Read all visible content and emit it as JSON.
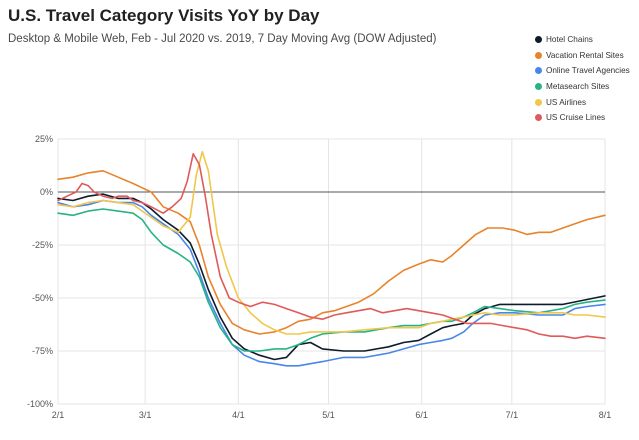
{
  "chart_data": {
    "type": "line",
    "title": "U.S. Travel Category Visits YoY by Day",
    "subtitle": "Desktop & Mobile Web, Feb - Jul 2020 vs. 2019, 7 Day Moving Avg (DOW Adjusted)",
    "x_ticks": [
      "2/1",
      "3/1",
      "4/1",
      "5/1",
      "6/1",
      "7/1",
      "8/1"
    ],
    "y_ticks": [
      "25%",
      "0%",
      "-25%",
      "-50%",
      "-75%",
      "-100%"
    ],
    "y_tick_values": [
      25,
      0,
      -25,
      -50,
      -75,
      -100
    ],
    "ylim": [
      -100,
      25
    ],
    "x_range_days": [
      0,
      182
    ],
    "grid": true,
    "legend_position": "top-right",
    "series": [
      {
        "name": "Hotel Chains",
        "color": "#0d1b2a",
        "points": [
          [
            0,
            -3
          ],
          [
            5,
            -4
          ],
          [
            10,
            -2
          ],
          [
            15,
            -1
          ],
          [
            20,
            -3
          ],
          [
            25,
            -3
          ],
          [
            28,
            -5
          ],
          [
            31,
            -8
          ],
          [
            35,
            -13
          ],
          [
            40,
            -18
          ],
          [
            44,
            -24
          ],
          [
            47,
            -34
          ],
          [
            50,
            -46
          ],
          [
            54,
            -59
          ],
          [
            58,
            -69
          ],
          [
            62,
            -74
          ],
          [
            67,
            -77
          ],
          [
            72,
            -79
          ],
          [
            76,
            -78
          ],
          [
            80,
            -72
          ],
          [
            84,
            -71
          ],
          [
            88,
            -74
          ],
          [
            95,
            -75
          ],
          [
            102,
            -75
          ],
          [
            110,
            -73
          ],
          [
            115,
            -71
          ],
          [
            120,
            -70
          ],
          [
            124,
            -67
          ],
          [
            128,
            -64
          ],
          [
            131,
            -63
          ],
          [
            135,
            -62
          ],
          [
            138,
            -58
          ],
          [
            142,
            -55
          ],
          [
            147,
            -53
          ],
          [
            152,
            -53
          ],
          [
            160,
            -53
          ],
          [
            168,
            -53
          ],
          [
            175,
            -51
          ],
          [
            182,
            -49
          ]
        ]
      },
      {
        "name": "Vacation Rental Sites",
        "color": "#e8832b",
        "points": [
          [
            0,
            6
          ],
          [
            5,
            7
          ],
          [
            10,
            9
          ],
          [
            15,
            10
          ],
          [
            20,
            7
          ],
          [
            25,
            4
          ],
          [
            28,
            2
          ],
          [
            31,
            0
          ],
          [
            35,
            -7
          ],
          [
            40,
            -10
          ],
          [
            44,
            -14
          ],
          [
            47,
            -25
          ],
          [
            50,
            -40
          ],
          [
            54,
            -53
          ],
          [
            58,
            -62
          ],
          [
            62,
            -65
          ],
          [
            67,
            -67
          ],
          [
            72,
            -66
          ],
          [
            76,
            -64
          ],
          [
            80,
            -61
          ],
          [
            84,
            -60
          ],
          [
            88,
            -57
          ],
          [
            92,
            -56
          ],
          [
            96,
            -54
          ],
          [
            100,
            -52
          ],
          [
            105,
            -48
          ],
          [
            110,
            -42
          ],
          [
            115,
            -37
          ],
          [
            120,
            -34
          ],
          [
            124,
            -32
          ],
          [
            128,
            -33
          ],
          [
            131,
            -30
          ],
          [
            135,
            -25
          ],
          [
            139,
            -20
          ],
          [
            143,
            -17
          ],
          [
            148,
            -17
          ],
          [
            152,
            -18
          ],
          [
            156,
            -20
          ],
          [
            160,
            -19
          ],
          [
            164,
            -19
          ],
          [
            168,
            -17
          ],
          [
            172,
            -15
          ],
          [
            176,
            -13
          ],
          [
            182,
            -11
          ]
        ]
      },
      {
        "name": "Online Travel Agencies",
        "color": "#4a86e8",
        "points": [
          [
            0,
            -5
          ],
          [
            5,
            -7
          ],
          [
            10,
            -6
          ],
          [
            15,
            -4
          ],
          [
            20,
            -5
          ],
          [
            25,
            -5
          ],
          [
            28,
            -7
          ],
          [
            31,
            -11
          ],
          [
            35,
            -15
          ],
          [
            40,
            -20
          ],
          [
            44,
            -27
          ],
          [
            47,
            -38
          ],
          [
            50,
            -50
          ],
          [
            54,
            -62
          ],
          [
            58,
            -72
          ],
          [
            62,
            -77
          ],
          [
            67,
            -80
          ],
          [
            72,
            -81
          ],
          [
            76,
            -82
          ],
          [
            80,
            -82
          ],
          [
            84,
            -81
          ],
          [
            88,
            -80
          ],
          [
            95,
            -78
          ],
          [
            102,
            -78
          ],
          [
            110,
            -76
          ],
          [
            115,
            -74
          ],
          [
            120,
            -72
          ],
          [
            124,
            -71
          ],
          [
            128,
            -70
          ],
          [
            131,
            -69
          ],
          [
            135,
            -66
          ],
          [
            138,
            -62
          ],
          [
            142,
            -58
          ],
          [
            147,
            -57
          ],
          [
            152,
            -57
          ],
          [
            160,
            -58
          ],
          [
            168,
            -58
          ],
          [
            172,
            -55
          ],
          [
            176,
            -54
          ],
          [
            182,
            -53
          ]
        ]
      },
      {
        "name": "Metasearch Sites",
        "color": "#26b387",
        "points": [
          [
            0,
            -10
          ],
          [
            5,
            -11
          ],
          [
            10,
            -9
          ],
          [
            15,
            -8
          ],
          [
            20,
            -9
          ],
          [
            25,
            -10
          ],
          [
            28,
            -13
          ],
          [
            31,
            -19
          ],
          [
            35,
            -25
          ],
          [
            40,
            -29
          ],
          [
            44,
            -33
          ],
          [
            47,
            -40
          ],
          [
            50,
            -52
          ],
          [
            54,
            -64
          ],
          [
            58,
            -72
          ],
          [
            62,
            -75
          ],
          [
            67,
            -75
          ],
          [
            72,
            -74
          ],
          [
            76,
            -74
          ],
          [
            80,
            -72
          ],
          [
            84,
            -69
          ],
          [
            88,
            -67
          ],
          [
            95,
            -66
          ],
          [
            102,
            -66
          ],
          [
            110,
            -64
          ],
          [
            115,
            -63
          ],
          [
            120,
            -63
          ],
          [
            124,
            -62
          ],
          [
            128,
            -61
          ],
          [
            131,
            -61
          ],
          [
            135,
            -59
          ],
          [
            138,
            -57
          ],
          [
            142,
            -54
          ],
          [
            147,
            -55
          ],
          [
            152,
            -56
          ],
          [
            160,
            -57
          ],
          [
            168,
            -55
          ],
          [
            172,
            -53
          ],
          [
            176,
            -52
          ],
          [
            182,
            -51
          ]
        ]
      },
      {
        "name": "US Airlines",
        "color": "#f0c74a",
        "points": [
          [
            0,
            -6
          ],
          [
            5,
            -7
          ],
          [
            10,
            -5
          ],
          [
            15,
            -4
          ],
          [
            20,
            -5
          ],
          [
            25,
            -6
          ],
          [
            28,
            -9
          ],
          [
            31,
            -12
          ],
          [
            35,
            -16
          ],
          [
            40,
            -19
          ],
          [
            44,
            -12
          ],
          [
            46,
            8
          ],
          [
            48,
            19
          ],
          [
            50,
            10
          ],
          [
            53,
            -20
          ],
          [
            56,
            -35
          ],
          [
            60,
            -50
          ],
          [
            64,
            -57
          ],
          [
            68,
            -62
          ],
          [
            72,
            -65
          ],
          [
            76,
            -67
          ],
          [
            80,
            -67
          ],
          [
            84,
            -66
          ],
          [
            88,
            -66
          ],
          [
            95,
            -66
          ],
          [
            102,
            -65
          ],
          [
            110,
            -64
          ],
          [
            115,
            -64
          ],
          [
            120,
            -64
          ],
          [
            124,
            -62
          ],
          [
            128,
            -61
          ],
          [
            131,
            -60
          ],
          [
            135,
            -59
          ],
          [
            138,
            -58
          ],
          [
            142,
            -57
          ],
          [
            147,
            -58
          ],
          [
            152,
            -58
          ],
          [
            160,
            -57
          ],
          [
            168,
            -57
          ],
          [
            172,
            -58
          ],
          [
            176,
            -58
          ],
          [
            182,
            -59
          ]
        ]
      },
      {
        "name": "US Cruise Lines",
        "color": "#e05a5a",
        "points": [
          [
            0,
            -4
          ],
          [
            3,
            -2
          ],
          [
            6,
            0
          ],
          [
            8,
            4
          ],
          [
            10,
            3
          ],
          [
            12,
            0
          ],
          [
            15,
            -2
          ],
          [
            18,
            -3
          ],
          [
            20,
            -2
          ],
          [
            23,
            -2
          ],
          [
            25,
            -4
          ],
          [
            28,
            -5
          ],
          [
            31,
            -7
          ],
          [
            35,
            -10
          ],
          [
            38,
            -7
          ],
          [
            41,
            -3
          ],
          [
            43,
            5
          ],
          [
            45,
            18
          ],
          [
            47,
            13
          ],
          [
            49,
            -2
          ],
          [
            51,
            -20
          ],
          [
            54,
            -40
          ],
          [
            57,
            -50
          ],
          [
            60,
            -52
          ],
          [
            64,
            -54
          ],
          [
            68,
            -52
          ],
          [
            72,
            -53
          ],
          [
            76,
            -55
          ],
          [
            80,
            -57
          ],
          [
            84,
            -59
          ],
          [
            88,
            -60
          ],
          [
            92,
            -58
          ],
          [
            96,
            -57
          ],
          [
            100,
            -56
          ],
          [
            104,
            -55
          ],
          [
            108,
            -57
          ],
          [
            112,
            -56
          ],
          [
            116,
            -55
          ],
          [
            120,
            -56
          ],
          [
            124,
            -57
          ],
          [
            128,
            -58
          ],
          [
            132,
            -60
          ],
          [
            136,
            -62
          ],
          [
            140,
            -62
          ],
          [
            144,
            -62
          ],
          [
            148,
            -63
          ],
          [
            152,
            -64
          ],
          [
            156,
            -65
          ],
          [
            160,
            -67
          ],
          [
            164,
            -68
          ],
          [
            168,
            -68
          ],
          [
            172,
            -69
          ],
          [
            176,
            -68
          ],
          [
            182,
            -69
          ]
        ]
      }
    ]
  }
}
